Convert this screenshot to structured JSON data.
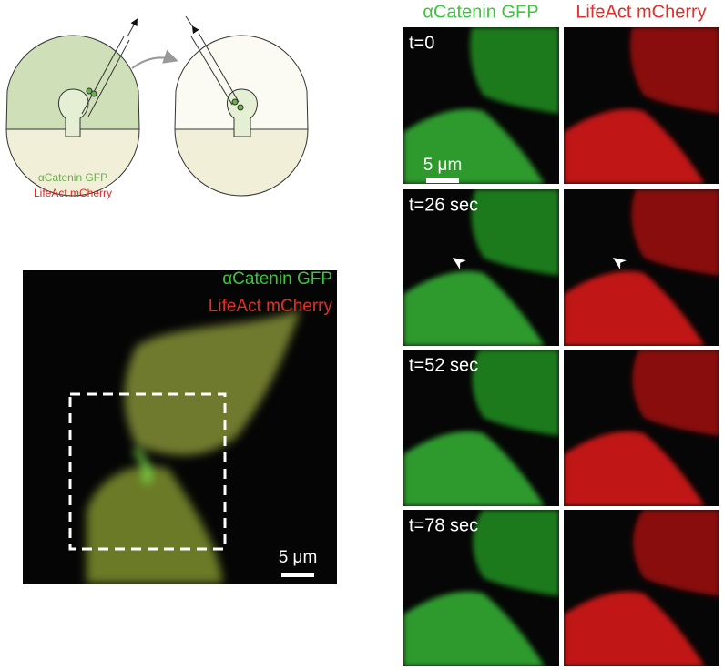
{
  "schematic": {
    "labels": [
      "αCatenin GFP",
      "LifeAct mCherry"
    ]
  },
  "overview": {
    "labels": [
      "αCatenin GFP",
      "LifeAct mCherry"
    ],
    "scale_bar": "5 μm"
  },
  "timelapse": {
    "columns": [
      "αCatenin GFP",
      "LifeAct mCherry"
    ],
    "frames": [
      {
        "time": "t=0",
        "scale_bar": "5 μm"
      },
      {
        "time": "t=26 sec"
      },
      {
        "time": "t=52 sec"
      },
      {
        "time": "t=78 sec"
      }
    ]
  }
}
